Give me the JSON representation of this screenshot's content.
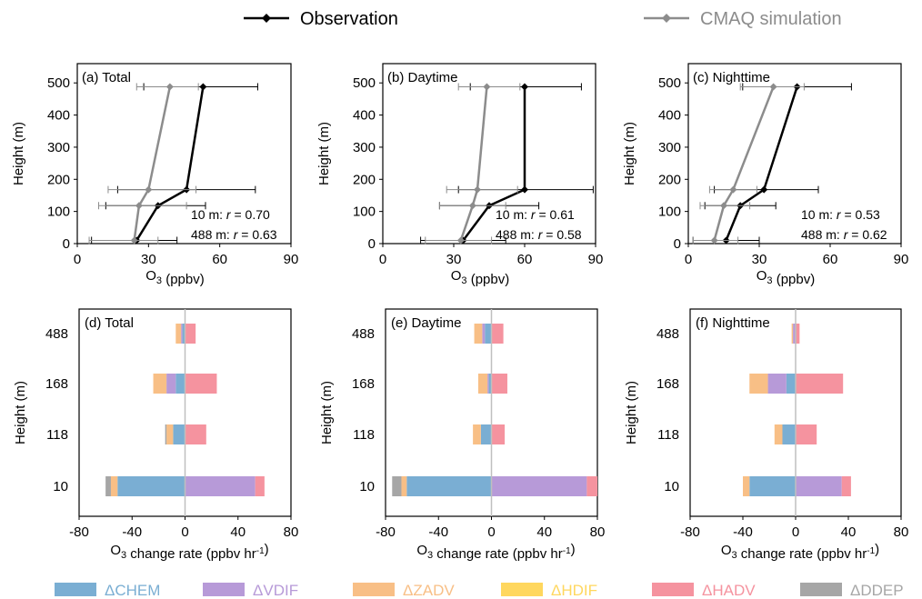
{
  "legend_top": [
    {
      "name": "Observation",
      "color": "#000000"
    },
    {
      "name": "CMAQ simulation",
      "color": "#8c8c8c"
    }
  ],
  "legend_bottom": [
    {
      "name": "ΔCHEM",
      "color": "#7aaed3"
    },
    {
      "name": "ΔVDIF",
      "color": "#b79ad8"
    },
    {
      "name": "ΔZADV",
      "color": "#f8bf86"
    },
    {
      "name": "ΔHDIF",
      "color": "#ffd75e"
    },
    {
      "name": "ΔHADV",
      "color": "#f5939f"
    },
    {
      "name": "ΔDDEP",
      "color": "#a6a6a6"
    }
  ],
  "chart_data": [
    {
      "type": "line",
      "panel": "(a) Total",
      "xlabel": "O3 (ppbv)",
      "ylabel": "Height (m)",
      "xlim": [
        0,
        90
      ],
      "xticks": [
        0,
        30,
        60,
        90
      ],
      "ylim": [
        0,
        500
      ],
      "yticks": [
        0,
        100,
        200,
        300,
        400,
        500
      ],
      "stats": [
        "10 m: r = 0.70",
        "488 m: r = 0.63"
      ],
      "series": [
        {
          "name": "Observation",
          "heights": [
            10,
            118,
            168,
            488
          ],
          "values": [
            25,
            34,
            46,
            53
          ],
          "err_lo": [
            6,
            12,
            17,
            28
          ],
          "err_hi": [
            42,
            54,
            75,
            76
          ]
        },
        {
          "name": "CMAQ simulation",
          "heights": [
            10,
            118,
            168,
            488
          ],
          "values": [
            24,
            26,
            30,
            39
          ],
          "err_lo": [
            5,
            9,
            13,
            25
          ],
          "err_hi": [
            34,
            46,
            50,
            51
          ]
        }
      ]
    },
    {
      "type": "line",
      "panel": "(b) Daytime",
      "xlabel": "O3 (ppbv)",
      "ylabel": "Height (m)",
      "xlim": [
        0,
        90
      ],
      "xticks": [
        0,
        30,
        60,
        90
      ],
      "ylim": [
        0,
        500
      ],
      "yticks": [
        0,
        100,
        200,
        300,
        400,
        500
      ],
      "stats": [
        "10 m: r = 0.61",
        "488 m: r = 0.58"
      ],
      "series": [
        {
          "name": "Observation",
          "heights": [
            10,
            118,
            168,
            488
          ],
          "values": [
            34,
            45,
            60,
            60
          ],
          "err_lo": [
            16,
            24,
            32,
            37
          ],
          "err_hi": [
            52,
            66,
            89,
            84
          ]
        },
        {
          "name": "CMAQ simulation",
          "heights": [
            10,
            118,
            168,
            488
          ],
          "values": [
            33,
            38,
            40,
            44
          ],
          "err_lo": [
            18,
            24,
            27,
            32
          ],
          "err_hi": [
            46,
            52,
            57,
            58
          ]
        }
      ]
    },
    {
      "type": "line",
      "panel": "(c) Nighttime",
      "xlabel": "O3 (ppbv)",
      "ylabel": "Height (m)",
      "xlim": [
        0,
        90
      ],
      "xticks": [
        0,
        30,
        60,
        90
      ],
      "ylim": [
        0,
        500
      ],
      "yticks": [
        0,
        100,
        200,
        300,
        400,
        500
      ],
      "stats": [
        "10 m: r = 0.53",
        "488 m: r = 0.62"
      ],
      "series": [
        {
          "name": "Observation",
          "heights": [
            10,
            118,
            168,
            488
          ],
          "values": [
            16,
            22,
            32,
            46
          ],
          "err_lo": [
            2,
            7,
            11,
            23
          ],
          "err_hi": [
            30,
            37,
            55,
            69
          ]
        },
        {
          "name": "CMAQ simulation",
          "heights": [
            10,
            118,
            168,
            488
          ],
          "values": [
            11,
            15,
            19,
            36
          ],
          "err_lo": [
            2,
            5,
            9,
            22
          ],
          "err_hi": [
            21,
            26,
            29,
            49
          ]
        }
      ]
    },
    {
      "type": "bar",
      "orientation": "horizontal-stacked",
      "panel": "(d) Total",
      "xlabel": "O3 change rate (ppbv hr-1)",
      "ylabel": "Height (m)",
      "xlim": [
        -80,
        80
      ],
      "xticks": [
        -80,
        -40,
        0,
        40,
        80
      ],
      "categories": [
        "488",
        "168",
        "118",
        "10"
      ],
      "series": [
        {
          "name": "ΔCHEM",
          "values": [
            -2,
            -7,
            -9,
            -51
          ]
        },
        {
          "name": "ΔVDIF",
          "values": [
            -1,
            -7,
            0,
            53
          ]
        },
        {
          "name": "ΔZADV",
          "values": [
            -4,
            -10,
            -5,
            -5
          ]
        },
        {
          "name": "ΔHDIF",
          "values": [
            0,
            0,
            0,
            0
          ]
        },
        {
          "name": "ΔHADV",
          "values": [
            8,
            24,
            16,
            7
          ]
        },
        {
          "name": "ΔDDEP",
          "values": [
            0,
            0,
            -1,
            -4
          ]
        }
      ],
      "positive_stack_base": [
        0,
        0,
        6,
        53
      ]
    },
    {
      "type": "bar",
      "orientation": "horizontal-stacked",
      "panel": "(e) Daytime",
      "xlabel": "O3 change rate (ppbv hr-1)",
      "ylabel": "Height (m)",
      "xlim": [
        -80,
        80
      ],
      "xticks": [
        -80,
        -40,
        0,
        40,
        80
      ],
      "categories": [
        "488",
        "168",
        "118",
        "10"
      ],
      "series": [
        {
          "name": "ΔCHEM",
          "values": [
            -5,
            -2,
            -8,
            -64
          ]
        },
        {
          "name": "ΔVDIF",
          "values": [
            -2,
            -1,
            0,
            72
          ]
        },
        {
          "name": "ΔZADV",
          "values": [
            -6,
            -7,
            -6,
            -4
          ]
        },
        {
          "name": "ΔHDIF",
          "values": [
            0,
            0,
            0,
            0
          ]
        },
        {
          "name": "ΔHADV",
          "values": [
            9,
            12,
            10,
            8
          ]
        },
        {
          "name": "ΔDDEP",
          "values": [
            0,
            0,
            0,
            -7
          ]
        }
      ],
      "positive_stack_base": [
        5,
        0,
        6,
        72
      ]
    },
    {
      "type": "bar",
      "orientation": "horizontal-stacked",
      "panel": "(f) Nighttime",
      "xlabel": "O3 change rate (ppbv hr-1)",
      "ylabel": "Height (m)",
      "xlim": [
        -80,
        80
      ],
      "xticks": [
        -80,
        -40,
        0,
        40,
        80
      ],
      "categories": [
        "488",
        "168",
        "118",
        "10"
      ],
      "series": [
        {
          "name": "ΔCHEM",
          "values": [
            0,
            -7,
            -10,
            -35
          ]
        },
        {
          "name": "ΔVDIF",
          "values": [
            -2,
            -14,
            0,
            35
          ]
        },
        {
          "name": "ΔZADV",
          "values": [
            -1,
            -14,
            -6,
            -5
          ]
        },
        {
          "name": "ΔHDIF",
          "values": [
            0,
            0,
            0,
            0
          ]
        },
        {
          "name": "ΔHADV",
          "values": [
            3,
            36,
            16,
            7
          ]
        },
        {
          "name": "ΔDDEP",
          "values": [
            0,
            0,
            0,
            0
          ]
        }
      ],
      "positive_stack_base": [
        1,
        0,
        6,
        35
      ]
    }
  ]
}
